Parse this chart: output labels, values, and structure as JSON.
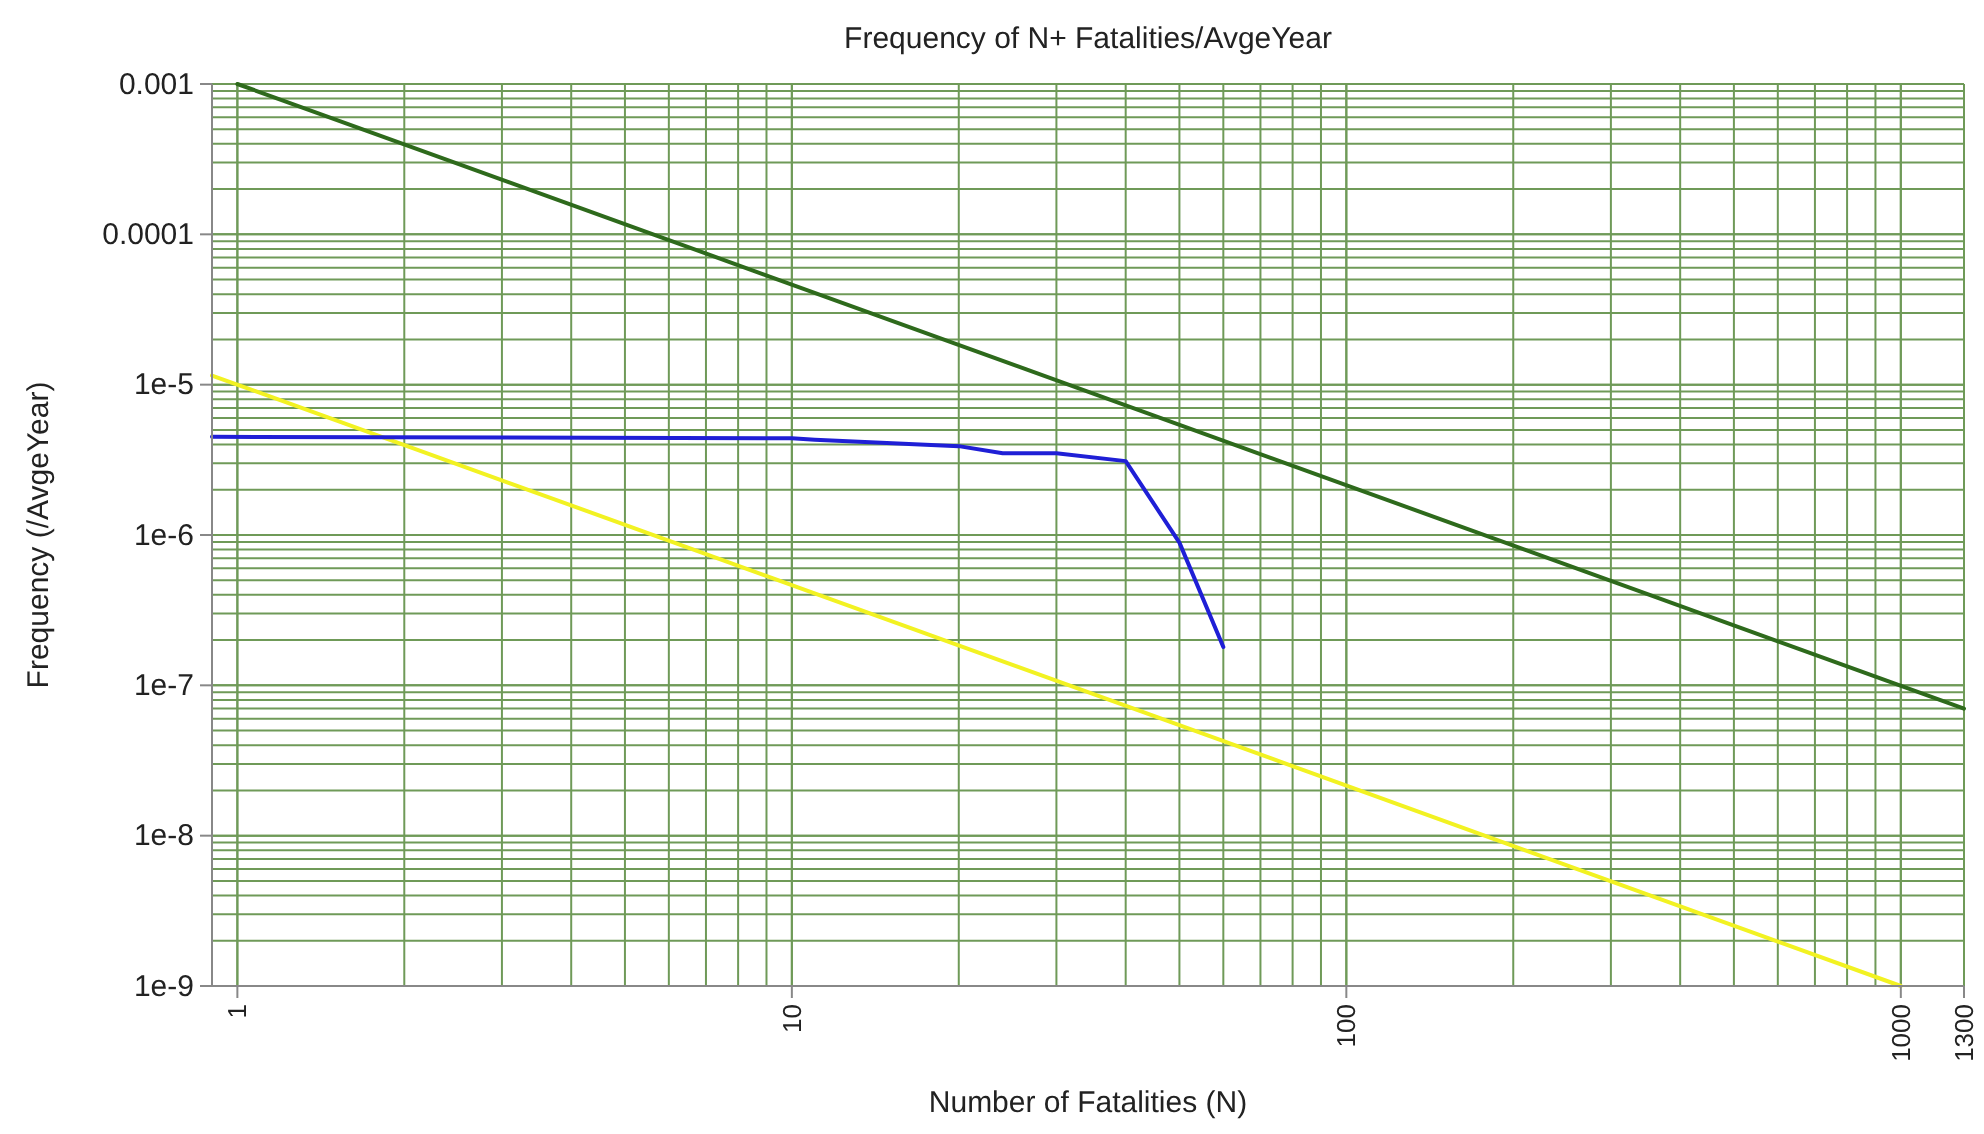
{
  "chart_data": {
    "type": "line",
    "title": "Frequency of N+ Fatalities/AvgeYear",
    "xlabel": "Number of Fatalities (N)",
    "ylabel": "Frequency (/AvgeYear)",
    "log": "xy",
    "grid": true,
    "xlim": [
      0.9,
      1300
    ],
    "xticks": [
      1,
      10,
      100,
      1000,
      1300
    ],
    "ylim": [
      1e-09,
      0.001
    ],
    "yticks": [
      {
        "value": 0.001,
        "label": "0.001"
      },
      {
        "value": 0.0001,
        "label": "0.0001"
      },
      {
        "value": 1e-05,
        "label": "1e-5"
      },
      {
        "value": 1e-06,
        "label": "1e-6"
      },
      {
        "value": 1e-07,
        "label": "1e-7"
      },
      {
        "value": 1e-08,
        "label": "1e-8"
      },
      {
        "value": 1e-09,
        "label": "1e-9"
      }
    ],
    "series": [
      {
        "color": "#2e6a1c",
        "x": [
          1,
          1300
        ],
        "values": [
          0.001,
          7e-08
        ]
      },
      {
        "color": "#f2f222",
        "x": [
          0.9,
          1000
        ],
        "values": [
          1.15e-05,
          1e-09
        ]
      },
      {
        "color": "#1f1fd6",
        "x": [
          0.9,
          10,
          11,
          20,
          24,
          30,
          40,
          50,
          60
        ],
        "values": [
          4.5e-06,
          4.4e-06,
          4.3e-06,
          3.9e-06,
          3.5e-06,
          3.5e-06,
          3.1e-06,
          8.9e-07,
          1.8e-07
        ]
      }
    ]
  }
}
